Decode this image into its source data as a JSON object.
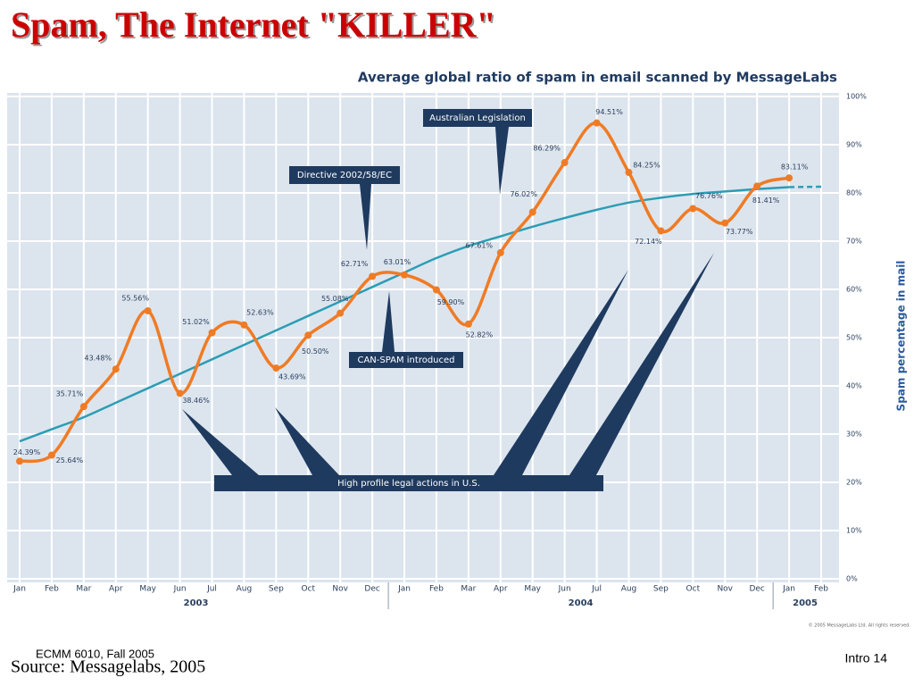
{
  "slide": {
    "title": "Spam, The Internet \"KILLER\"",
    "footer_left": "ECMM 6010, Fall 2005",
    "source": "Source: Messagelabs, 2005",
    "page": "Intro 14"
  },
  "chart_data": {
    "type": "line",
    "title": "Average global ratio of spam in email scanned by MessageLabs",
    "y_label": "Spam percentage in mail",
    "copyright": "© 2005 MessageLabs Ltd. All rights reserved.",
    "categories": [
      "Jan",
      "Feb",
      "Mar",
      "Apr",
      "May",
      "Jun",
      "Jul",
      "Aug",
      "Sep",
      "Oct",
      "Nov",
      "Dec",
      "Jan",
      "Feb",
      "Mar",
      "Apr",
      "May",
      "Jun",
      "Jul",
      "Aug",
      "Sep",
      "Oct",
      "Nov",
      "Dec",
      "Jan",
      "Feb"
    ],
    "years": [
      "2003",
      "2004",
      "2005"
    ],
    "series": [
      {
        "color": "#f07b24",
        "values": [
          24.39,
          25.64,
          35.71,
          43.48,
          55.56,
          38.46,
          51.02,
          52.63,
          43.69,
          50.5,
          55.08,
          62.71,
          63.01,
          59.9,
          52.82,
          67.61,
          76.02,
          86.29,
          94.51,
          84.25,
          72.14,
          76.76,
          73.77,
          81.41,
          83.11,
          null
        ],
        "value_labels": [
          "24.39%",
          "25.64%",
          "35.71%",
          "43.48%",
          "55.56%",
          "38.46%",
          "51.02%",
          "52.63%",
          "43.69%",
          "50.50%",
          "55.08%",
          "62.71%",
          "63.01%",
          "59.90%",
          "52.82%",
          "67.61%",
          "76.02%",
          "86.29%",
          "94.51%",
          "84.25%",
          "72.14%",
          "76.76%",
          "73.77%",
          "81.41%",
          "83.11%",
          null
        ]
      },
      {
        "color": "#2c9db5",
        "values": [
          28.5,
          31,
          33.5,
          36.5,
          39.5,
          42.5,
          45.5,
          48.5,
          51.5,
          54.5,
          57.5,
          60.5,
          63.5,
          66.5,
          69,
          71,
          73,
          74.8,
          76.5,
          78,
          79,
          79.8,
          80.3,
          80.8,
          81.2,
          81.3
        ]
      }
    ],
    "annotations": [
      "Australian  Legislation",
      "Directive 2002/58/EC",
      "CAN-SPAM introduced",
      "High profile legal actions in U.S."
    ],
    "ylim": [
      0,
      100
    ],
    "yticks": [
      {
        "value": 0,
        "label": "0%"
      },
      {
        "value": 10,
        "label": "10%"
      },
      {
        "value": 20,
        "label": "20%"
      },
      {
        "value": 30,
        "label": "30%"
      },
      {
        "value": 40,
        "label": "40%"
      },
      {
        "value": 50,
        "label": "50%"
      },
      {
        "value": 60,
        "label": "60%"
      },
      {
        "value": 70,
        "label": "70%"
      },
      {
        "value": 80,
        "label": "80%"
      },
      {
        "value": 90,
        "label": "90%"
      },
      {
        "value": 100,
        "label": "100%"
      }
    ],
    "grid": true
  }
}
